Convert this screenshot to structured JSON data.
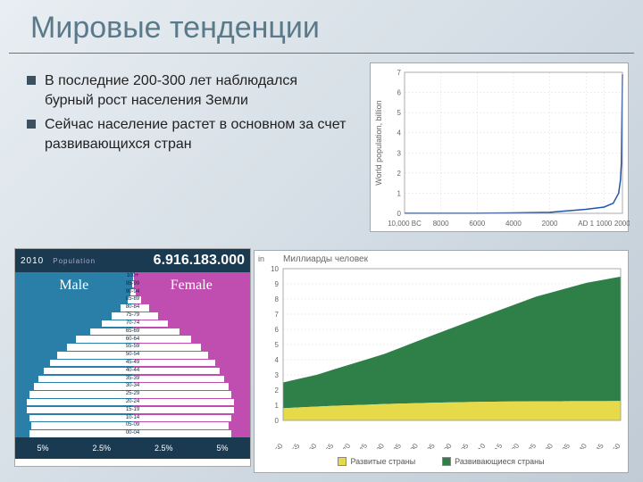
{
  "title": "Мировые тенденции",
  "bullets": [
    "В последние 200-300 лет наблюдался бурный рост населения Земли",
    "Сейчас население растет в основном за счет развивающихся стран"
  ],
  "history_chart": {
    "type": "line",
    "ylabel": "World population, billion",
    "ylim": [
      0,
      7
    ],
    "ytick_step": 1,
    "x_ticks": [
      "10,000 BC",
      "8000",
      "6000",
      "4000",
      "2000",
      "AD 1",
      "1000",
      "2000"
    ],
    "x_vals": [
      -10000,
      -8000,
      -6000,
      -4000,
      -2000,
      1,
      1000,
      1500,
      1800,
      1900,
      1950,
      2000,
      2010
    ],
    "y_vals": [
      0.005,
      0.005,
      0.008,
      0.02,
      0.05,
      0.2,
      0.31,
      0.5,
      1.0,
      1.65,
      2.5,
      6.1,
      6.9
    ],
    "line_color": "#2255aa",
    "line_width": 1.5,
    "background": "#ffffff",
    "grid_color": "#c8c8c8"
  },
  "pyramid": {
    "year": "2010",
    "population_label": "Population",
    "population": "6.916.183.000",
    "male_label": "Male",
    "female_label": "Female",
    "male_color": "#2a7fa8",
    "female_color": "#c04db0",
    "header_color": "#1a3a52",
    "age_groups": [
      "100+",
      "95-99",
      "90-94",
      "85-89",
      "80-84",
      "75-79",
      "70-74",
      "65-69",
      "60-64",
      "55-59",
      "50-54",
      "45-49",
      "40-44",
      "35-39",
      "30-34",
      "25-29",
      "20-24",
      "15-19",
      "10-14",
      "05-09",
      "00-04"
    ],
    "male_pct": [
      0.0,
      0.02,
      0.08,
      0.2,
      0.5,
      0.9,
      1.3,
      1.8,
      2.4,
      2.8,
      3.2,
      3.5,
      3.8,
      4.0,
      4.2,
      4.4,
      4.5,
      4.5,
      4.4,
      4.3,
      4.4
    ],
    "female_pct": [
      0.01,
      0.05,
      0.15,
      0.35,
      0.7,
      1.1,
      1.5,
      2.0,
      2.5,
      2.9,
      3.2,
      3.5,
      3.7,
      3.9,
      4.1,
      4.2,
      4.3,
      4.3,
      4.2,
      4.1,
      4.2
    ],
    "x_ticks": [
      "5%",
      "2.5%",
      "2.5%",
      "5%"
    ]
  },
  "projection_chart": {
    "type": "area",
    "title": "Миллиарды человек",
    "ylabel": "in",
    "ylim": [
      0,
      10
    ],
    "ytick_step": 1,
    "x_ticks": [
      "1950",
      "1955",
      "1960",
      "1965",
      "1970",
      "1975",
      "1980",
      "1985",
      "1990",
      "1995",
      "2000",
      "2005",
      "2010",
      "2015",
      "2020",
      "2025",
      "2030",
      "2035",
      "2040",
      "2045",
      "2050"
    ],
    "series": [
      {
        "name": "Развивающиеся страны",
        "label": "Развивающиеся страны",
        "color": "#2e8048",
        "values": [
          1.7,
          1.9,
          2.1,
          2.4,
          2.7,
          3.0,
          3.3,
          3.7,
          4.1,
          4.5,
          4.9,
          5.3,
          5.7,
          6.1,
          6.5,
          6.9,
          7.2,
          7.5,
          7.8,
          8.0,
          8.2
        ]
      },
      {
        "name": "Развитые страны",
        "label": "Развитые страны",
        "color": "#e6d94a",
        "values": [
          0.8,
          0.86,
          0.91,
          0.96,
          1.0,
          1.04,
          1.08,
          1.11,
          1.14,
          1.17,
          1.19,
          1.21,
          1.23,
          1.24,
          1.25,
          1.26,
          1.26,
          1.27,
          1.27,
          1.27,
          1.28
        ]
      }
    ],
    "background": "#ffffff",
    "grid_color": "#c8c8c8"
  }
}
